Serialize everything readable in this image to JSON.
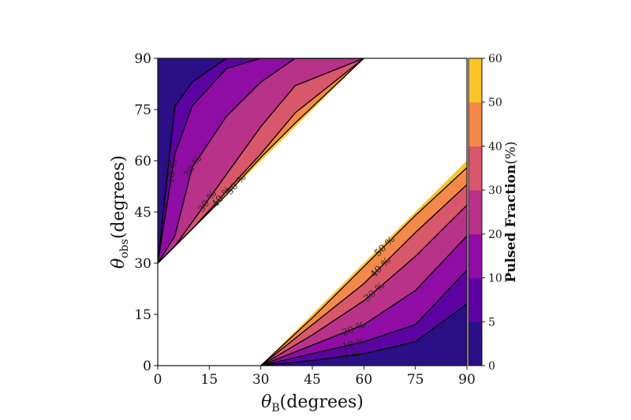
{
  "chart_data": {
    "type": "contour",
    "title": "",
    "xlabel": {
      "symbol": "θ",
      "sub": "B",
      "text": "(degrees)"
    },
    "ylabel": {
      "symbol": "θ",
      "sub": "obs",
      "text": "(degrees)"
    },
    "xlim": [
      0,
      90
    ],
    "ylim": [
      0,
      90
    ],
    "xticks": [
      "0",
      "15",
      "30",
      "45",
      "60",
      "75",
      "90"
    ],
    "yticks": [
      "0",
      "15",
      "30",
      "45",
      "60",
      "75",
      "90"
    ],
    "grid": false,
    "colorbar": {
      "label": "Pulsed Fraction",
      "label_suffix": "(%)",
      "levels": [
        0,
        5,
        10,
        20,
        30,
        40,
        50,
        60
      ],
      "ticks": [
        "0",
        "5",
        "10",
        "20",
        "30",
        "40",
        "50",
        "60"
      ],
      "colors": [
        "#2a0f86",
        "#5c02a3",
        "#8f0da4",
        "#b93289",
        "#d8576b",
        "#f48849",
        "#f9c42a"
      ]
    },
    "excluded_region": "|θ_obs − θ_B| < 30° (blank)",
    "upper_region": {
      "x": [
        0,
        5,
        10,
        20,
        30,
        40,
        60
      ],
      "contours": [
        {
          "level": 5,
          "label": "5 %",
          "y": [
            30,
            76,
            83,
            90,
            90,
            90,
            90
          ]
        },
        {
          "level": 10,
          "label": "10 %",
          "y": [
            30,
            62,
            76,
            87,
            90,
            90,
            90
          ]
        },
        {
          "level": 20,
          "label": "20 %",
          "y": [
            30,
            38,
            58,
            73,
            83,
            90,
            90
          ]
        },
        {
          "level": 30,
          "label": "30 %",
          "y": [
            30,
            35,
            42,
            56,
            70,
            82,
            90
          ]
        },
        {
          "level": 40,
          "label": "40 %",
          "y": [
            30,
            35,
            40,
            51,
            62,
            74,
            90
          ]
        },
        {
          "level": 50,
          "label": "50 %",
          "y": [
            30,
            35,
            40,
            50,
            61,
            71,
            90
          ]
        }
      ]
    },
    "lower_region": {
      "x": [
        30,
        45,
        60,
        75,
        90
      ],
      "contours": [
        {
          "level": 5,
          "label": "5 %",
          "y": [
            0,
            1.5,
            3.5,
            7,
            18
          ]
        },
        {
          "level": 10,
          "label": "10 %",
          "y": [
            0,
            3.5,
            7,
            12,
            28
          ]
        },
        {
          "level": 20,
          "label": "20 %",
          "y": [
            0,
            6,
            12,
            22,
            38
          ]
        },
        {
          "level": 30,
          "label": "30 %",
          "y": [
            0,
            9,
            19,
            32,
            47
          ]
        },
        {
          "level": 40,
          "label": "40 %",
          "y": [
            0,
            12,
            24,
            39,
            53
          ]
        },
        {
          "level": 50,
          "label": "50 %",
          "y": [
            0,
            14,
            29,
            44,
            58
          ]
        }
      ]
    }
  }
}
